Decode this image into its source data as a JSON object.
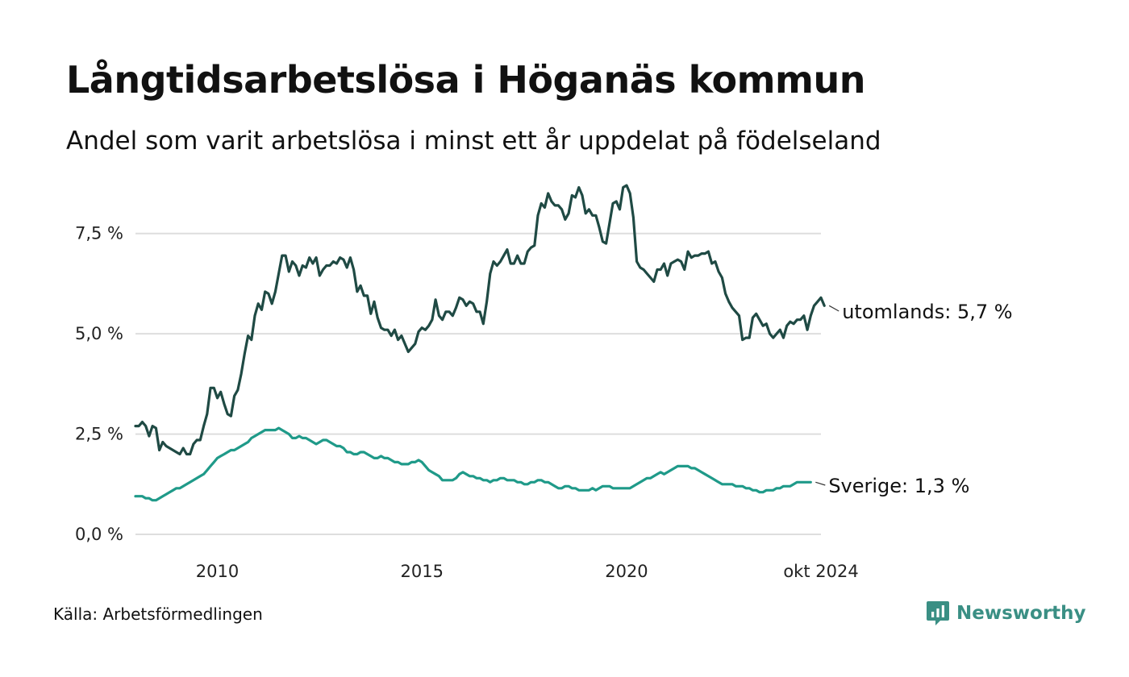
{
  "header": {
    "title": "Långtidsarbetslösa i Höganäs kommun",
    "subtitle": "Andel som varit arbetslösa i minst ett år uppdelat på födelseland"
  },
  "footer": {
    "source": "Källa: Arbetsförmedlingen",
    "brand": "Newsworthy",
    "brand_color": "#3a8f84"
  },
  "chart_data": {
    "type": "line",
    "title": "Långtidsarbetslösa i Höganäs kommun",
    "subtitle": "Andel som varit arbetslösa i minst ett år uppdelat på födelseland",
    "xlabel": "",
    "ylabel": "",
    "x_start": 2008.0,
    "x_step_months": 1,
    "x_end_label": "okt 2024",
    "xlim": [
      2008.0,
      2024.75
    ],
    "ylim": [
      0,
      8.8
    ],
    "yticks": [
      0,
      2.5,
      5.0,
      7.5
    ],
    "ytick_labels": [
      "0,0 %",
      "2,5 %",
      "5,0 %",
      "7,5 %"
    ],
    "xticks": [
      2010,
      2015,
      2020,
      2024.75
    ],
    "xtick_labels": [
      "2010",
      "2015",
      "2020",
      "okt 2024"
    ],
    "grid": "horizontal",
    "legend": "direct-labels-right",
    "series": [
      {
        "name": "utomlands",
        "end_label": "utomlands: 5,7 %",
        "color": "#1f4a44",
        "values": [
          2.7,
          2.7,
          2.8,
          2.7,
          2.45,
          2.7,
          2.65,
          2.1,
          2.3,
          2.2,
          2.15,
          2.1,
          2.05,
          2.0,
          2.15,
          2.0,
          2.0,
          2.25,
          2.35,
          2.35,
          2.7,
          3.0,
          3.65,
          3.65,
          3.4,
          3.55,
          3.25,
          3.0,
          2.95,
          3.45,
          3.6,
          4.0,
          4.5,
          4.95,
          4.85,
          5.45,
          5.75,
          5.6,
          6.05,
          6.0,
          5.75,
          6.05,
          6.5,
          6.95,
          6.95,
          6.55,
          6.8,
          6.7,
          6.45,
          6.7,
          6.65,
          6.9,
          6.75,
          6.9,
          6.45,
          6.6,
          6.7,
          6.7,
          6.8,
          6.75,
          6.9,
          6.85,
          6.65,
          6.9,
          6.6,
          6.05,
          6.2,
          5.95,
          5.95,
          5.5,
          5.8,
          5.4,
          5.15,
          5.1,
          5.1,
          4.95,
          5.1,
          4.85,
          4.95,
          4.75,
          4.55,
          4.65,
          4.75,
          5.05,
          5.15,
          5.1,
          5.2,
          5.35,
          5.85,
          5.45,
          5.35,
          5.55,
          5.55,
          5.45,
          5.65,
          5.9,
          5.85,
          5.7,
          5.8,
          5.75,
          5.55,
          5.55,
          5.25,
          5.8,
          6.5,
          6.8,
          6.7,
          6.8,
          6.95,
          7.1,
          6.75,
          6.75,
          6.95,
          6.75,
          6.75,
          7.05,
          7.15,
          7.2,
          7.95,
          8.25,
          8.15,
          8.5,
          8.3,
          8.2,
          8.2,
          8.1,
          7.85,
          8.0,
          8.45,
          8.4,
          8.65,
          8.45,
          8.0,
          8.1,
          7.95,
          7.95,
          7.65,
          7.3,
          7.25,
          7.75,
          8.25,
          8.3,
          8.1,
          8.65,
          8.7,
          8.5,
          7.9,
          6.8,
          6.65,
          6.6,
          6.5,
          6.4,
          6.3,
          6.6,
          6.6,
          6.75,
          6.45,
          6.75,
          6.8,
          6.85,
          6.8,
          6.6,
          7.05,
          6.9,
          6.95,
          6.95,
          7.0,
          7.0,
          7.05,
          6.75,
          6.8,
          6.55,
          6.4,
          6.0,
          5.8,
          5.65,
          5.55,
          5.45,
          4.85,
          4.9,
          4.9,
          5.4,
          5.5,
          5.35,
          5.2,
          5.25,
          5.0,
          4.9,
          5.0,
          5.1,
          4.9,
          5.2,
          5.3,
          5.25,
          5.35,
          5.35,
          5.45,
          5.1,
          5.45,
          5.7,
          5.8,
          5.9,
          5.7
        ]
      },
      {
        "name": "Sverige",
        "end_label": "Sverige: 1,3 %",
        "color": "#1f9a89",
        "values": [
          0.95,
          0.95,
          0.95,
          0.9,
          0.9,
          0.85,
          0.85,
          0.9,
          0.95,
          1.0,
          1.05,
          1.1,
          1.15,
          1.15,
          1.2,
          1.25,
          1.3,
          1.35,
          1.4,
          1.45,
          1.5,
          1.6,
          1.7,
          1.8,
          1.9,
          1.95,
          2.0,
          2.05,
          2.1,
          2.1,
          2.15,
          2.2,
          2.25,
          2.3,
          2.4,
          2.45,
          2.5,
          2.55,
          2.6,
          2.6,
          2.6,
          2.6,
          2.65,
          2.6,
          2.55,
          2.5,
          2.4,
          2.4,
          2.45,
          2.4,
          2.4,
          2.35,
          2.3,
          2.25,
          2.3,
          2.35,
          2.35,
          2.3,
          2.25,
          2.2,
          2.2,
          2.15,
          2.05,
          2.05,
          2.0,
          2.0,
          2.05,
          2.05,
          2.0,
          1.95,
          1.9,
          1.9,
          1.95,
          1.9,
          1.9,
          1.85,
          1.8,
          1.8,
          1.75,
          1.75,
          1.75,
          1.8,
          1.8,
          1.85,
          1.8,
          1.7,
          1.6,
          1.55,
          1.5,
          1.45,
          1.35,
          1.35,
          1.35,
          1.35,
          1.4,
          1.5,
          1.55,
          1.5,
          1.45,
          1.45,
          1.4,
          1.4,
          1.35,
          1.35,
          1.3,
          1.35,
          1.35,
          1.4,
          1.4,
          1.35,
          1.35,
          1.35,
          1.3,
          1.3,
          1.25,
          1.25,
          1.3,
          1.3,
          1.35,
          1.35,
          1.3,
          1.3,
          1.25,
          1.2,
          1.15,
          1.15,
          1.2,
          1.2,
          1.15,
          1.15,
          1.1,
          1.1,
          1.1,
          1.1,
          1.15,
          1.1,
          1.15,
          1.2,
          1.2,
          1.2,
          1.15,
          1.15,
          1.15,
          1.15,
          1.15,
          1.15,
          1.2,
          1.25,
          1.3,
          1.35,
          1.4,
          1.4,
          1.45,
          1.5,
          1.55,
          1.5,
          1.55,
          1.6,
          1.65,
          1.7,
          1.7,
          1.7,
          1.7,
          1.65,
          1.65,
          1.6,
          1.55,
          1.5,
          1.45,
          1.4,
          1.35,
          1.3,
          1.25,
          1.25,
          1.25,
          1.25,
          1.2,
          1.2,
          1.2,
          1.15,
          1.15,
          1.1,
          1.1,
          1.05,
          1.05,
          1.1,
          1.1,
          1.1,
          1.15,
          1.15,
          1.2,
          1.2,
          1.2,
          1.25,
          1.3,
          1.3,
          1.3,
          1.3,
          1.3
        ]
      }
    ]
  }
}
